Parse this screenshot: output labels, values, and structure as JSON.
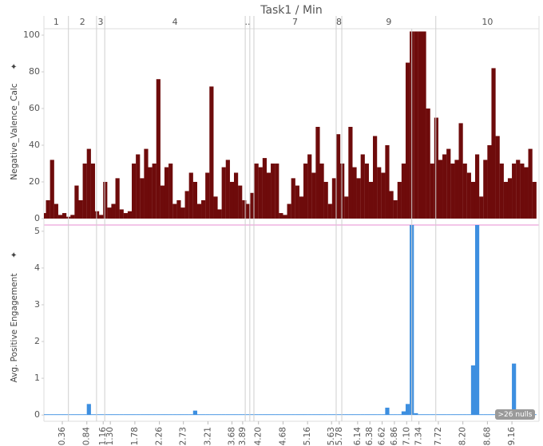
{
  "chart_data": {
    "type": "bar",
    "title": "Task1 / Min",
    "partitions": [
      {
        "label": "1",
        "start": 0,
        "end": 0.48
      },
      {
        "label": "2",
        "start": 0.48,
        "end": 1.03
      },
      {
        "label": "3",
        "start": 1.03,
        "end": 1.19
      },
      {
        "label": "4",
        "start": 1.19,
        "end": 3.94
      },
      {
        "label": "..",
        "start": 3.94,
        "end": 4.03
      },
      {
        "label": null,
        "start": 4.03,
        "end": 4.11
      },
      {
        "label": "7",
        "start": 4.11,
        "end": 5.72
      },
      {
        "label": "8",
        "start": 5.72,
        "end": 5.83
      },
      {
        "label": "9",
        "start": 5.83,
        "end": 7.67
      },
      {
        "label": "10",
        "start": 7.67,
        "end": 9.69
      }
    ],
    "reference_lines": [
      7.2
    ],
    "xlim": [
      0,
      9.69
    ],
    "xticks": [
      0.36,
      0.84,
      1.16,
      {
        "value": 1.3,
        "label": "1.30"
      },
      1.78,
      2.26,
      2.73,
      3.21,
      3.68,
      3.89,
      {
        "value": 4.2,
        "label": "4.20"
      },
      4.68,
      5.16,
      5.63,
      5.78,
      6.14,
      6.38,
      6.62,
      6.86,
      {
        "value": 7.1,
        "label": "7.10"
      },
      7.34,
      7.72,
      {
        "value": 8.2,
        "label": "8.20"
      },
      8.68,
      9.16
    ],
    "x": [
      0,
      0.08,
      0.16,
      0.24,
      0.32,
      0.4,
      0.48,
      0.56,
      0.64,
      0.72,
      0.8,
      0.88,
      0.96,
      1.04,
      1.12,
      1.2,
      1.28,
      1.36,
      1.44,
      1.52,
      1.6,
      1.68,
      1.76,
      1.84,
      1.92,
      2,
      2.08,
      2.16,
      2.24,
      2.32,
      2.4,
      2.48,
      2.56,
      2.64,
      2.72,
      2.8,
      2.88,
      2.96,
      3.04,
      3.12,
      3.2,
      3.28,
      3.36,
      3.44,
      3.52,
      3.6,
      3.68,
      3.76,
      3.84,
      3.92,
      4,
      4.08,
      4.16,
      4.24,
      4.32,
      4.4,
      4.48,
      4.56,
      4.64,
      4.72,
      4.8,
      4.88,
      4.96,
      5.04,
      5.12,
      5.2,
      5.28,
      5.36,
      5.44,
      5.52,
      5.6,
      5.68,
      5.76,
      5.84,
      5.92,
      6,
      6.08,
      6.16,
      6.24,
      6.32,
      6.4,
      6.48,
      6.56,
      6.64,
      6.72,
      6.8,
      6.88,
      6.96,
      7.04,
      7.12,
      7.2,
      7.28,
      7.36,
      7.44,
      7.52,
      7.6,
      7.68,
      7.76,
      7.84,
      7.92,
      8,
      8.08,
      8.16,
      8.24,
      8.32,
      8.4,
      8.48,
      8.56,
      8.64,
      8.72,
      8.8,
      8.88,
      8.96,
      9.04,
      9.12,
      9.2,
      9.28,
      9.36,
      9.44,
      9.52,
      9.6
    ],
    "panels": [
      {
        "name": "Negative_Valence_Calc",
        "color": "#6e0b0b",
        "ylim": [
          -3.5,
          103.5
        ],
        "yticks": [
          0,
          20,
          40,
          60,
          80,
          100
        ],
        "values": [
          3,
          10,
          32,
          8,
          2,
          3,
          1,
          2,
          18,
          10,
          30,
          38,
          30,
          4,
          2,
          20,
          6,
          8,
          22,
          5,
          3,
          4,
          30,
          35,
          22,
          38,
          28,
          30,
          76,
          18,
          28,
          30,
          8,
          10,
          6,
          15,
          25,
          20,
          8,
          10,
          25,
          72,
          12,
          5,
          28,
          32,
          20,
          25,
          18,
          10,
          8,
          14,
          30,
          28,
          33,
          25,
          30,
          30,
          3,
          2,
          8,
          22,
          18,
          12,
          30,
          35,
          25,
          50,
          30,
          20,
          8,
          22,
          46,
          30,
          12,
          50,
          28,
          22,
          35,
          30,
          20,
          45,
          28,
          25,
          40,
          15,
          10,
          20,
          30,
          85,
          102,
          102,
          102,
          102,
          60,
          30,
          55,
          32,
          35,
          38,
          30,
          32,
          52,
          30,
          25,
          20,
          35,
          12,
          32,
          40,
          82,
          45,
          30,
          20,
          22,
          30,
          32,
          30,
          28,
          38,
          20
        ]
      },
      {
        "name": "Avg. Positive Engagement",
        "color": "#3d8fe0",
        "ylim": [
          -0.17,
          5.17
        ],
        "yticks": [
          0,
          1,
          2,
          3,
          4,
          5
        ],
        "values": [
          0.02,
          0.02,
          0.02,
          0.02,
          0.02,
          0.02,
          0.02,
          0.02,
          0.02,
          0.02,
          0.02,
          0.3,
          0.02,
          0.02,
          0.02,
          0.02,
          0.02,
          0.02,
          0.02,
          0.02,
          0.02,
          0.02,
          0.02,
          0.02,
          0.02,
          0.02,
          0.02,
          0.02,
          0.02,
          0.02,
          0.02,
          0.02,
          0.02,
          0.02,
          0.02,
          0.02,
          0.02,
          0.12,
          0.02,
          0.02,
          0.02,
          0.02,
          0.02,
          0.02,
          0.02,
          0.02,
          0.02,
          0.02,
          0.02,
          0.02,
          0.02,
          0.02,
          0.02,
          0.02,
          0.02,
          0.02,
          0.02,
          0.02,
          0.02,
          0.02,
          0.02,
          0.02,
          0.02,
          0.02,
          0.02,
          0.02,
          0.02,
          0.02,
          0.02,
          0.02,
          0.02,
          0.02,
          0.02,
          0.02,
          0.02,
          0.02,
          0.02,
          0.02,
          0.02,
          0.02,
          0.02,
          0.02,
          0.02,
          0.02,
          0.2,
          0.02,
          0.02,
          0.02,
          0.1,
          0.3,
          5.2,
          0.05,
          0.02,
          0.02,
          0.02,
          0.02,
          0.02,
          0.02,
          0.02,
          0.02,
          0.02,
          0.02,
          0.02,
          0.02,
          0.02,
          1.35,
          5.2,
          0.02,
          0.02,
          0.02,
          0.02,
          0.02,
          0.02,
          0.02,
          0.02,
          1.4,
          0.02,
          0.02,
          0.02,
          0.02,
          0.02
        ],
        "null_indicator": ">26 nulls"
      }
    ]
  }
}
